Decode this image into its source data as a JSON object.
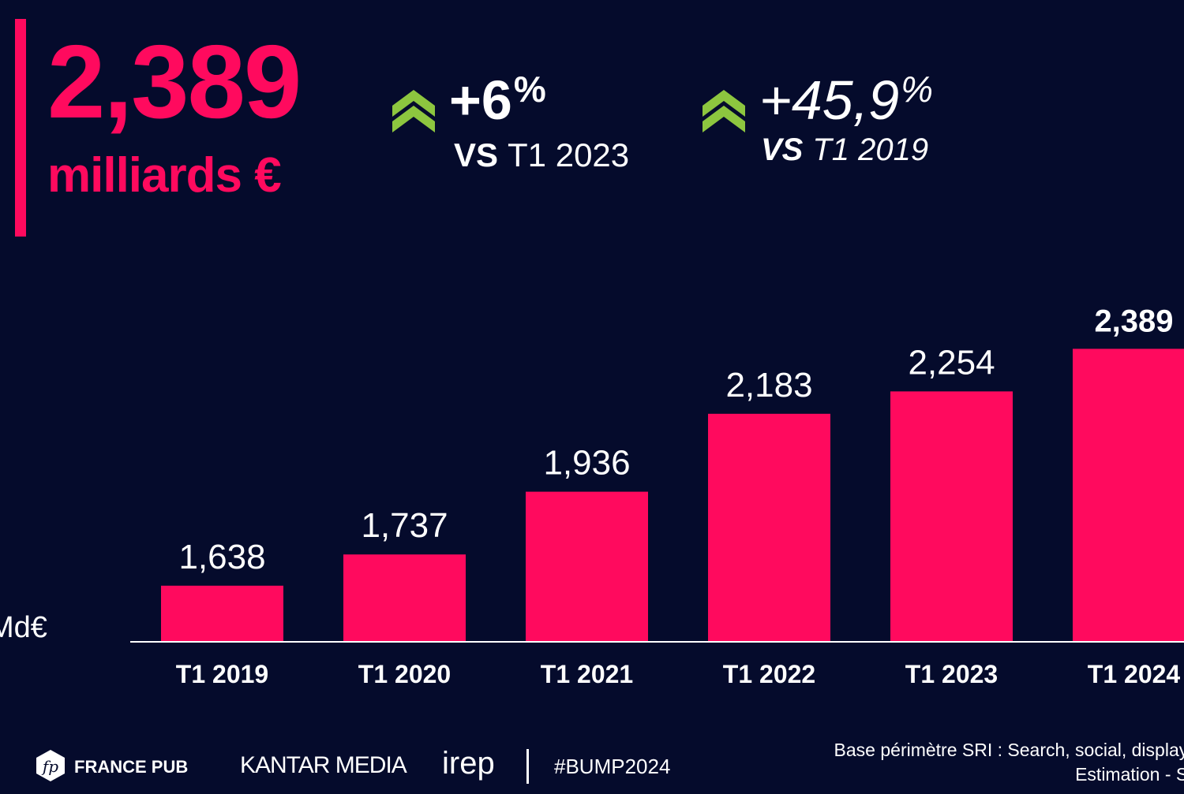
{
  "headline": {
    "value": "2,389",
    "unit": "milliards €"
  },
  "kpis": [
    {
      "pct": "+6",
      "pct_sign": "%",
      "vs": "VS",
      "ref": "T1 2023",
      "arrow_icon": "double-chevron-up-icon"
    },
    {
      "pct": "+45,9",
      "pct_sign": "%",
      "vs": "VS",
      "ref": "T1 2019",
      "arrow_icon": "double-chevron-up-icon"
    }
  ],
  "chart_data": {
    "type": "bar",
    "categories": [
      "T1 2019",
      "T1 2020",
      "T1 2021",
      "T1 2022",
      "T1 2023",
      "T1 2024"
    ],
    "values": [
      1.638,
      1.737,
      1.936,
      2.183,
      2.254,
      2.389
    ],
    "value_labels": [
      "1,638",
      "1,737",
      "1,936",
      "2,183",
      "2,254",
      "2,389"
    ],
    "ylabel": "Md€",
    "ylim": [
      1.46,
      2.6
    ],
    "grid": false,
    "legend": "none"
  },
  "footer": {
    "logos": [
      "FRANCE PUB",
      "KANTAR MEDIA",
      "irep"
    ],
    "hashtag": "#BUMP2024",
    "source_line1": "Base périmètre SRI : Search, social, display et a",
    "source_line2": "Estimation - Sourc"
  },
  "colors": {
    "background": "#050b2c",
    "accent": "#ff0a5e",
    "bar": "#ff0a5e",
    "arrow": "#8dc63f",
    "text": "#ffffff"
  }
}
